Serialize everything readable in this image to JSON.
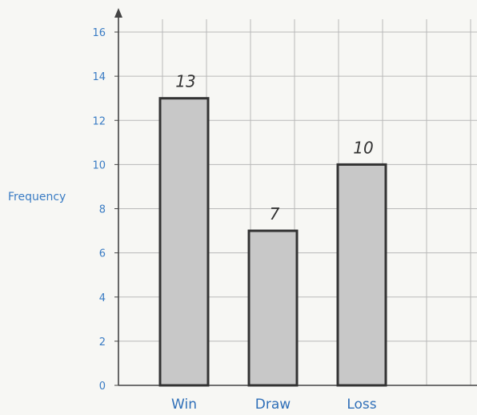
{
  "chart_data": {
    "type": "bar",
    "categories": [
      "Win",
      "Draw",
      "Loss"
    ],
    "values": [
      13,
      7,
      10
    ],
    "data_labels": [
      "13",
      "7",
      "10"
    ],
    "title": "",
    "xlabel": "",
    "ylabel": "Frequency",
    "ylim": [
      0,
      16
    ],
    "y_ticks": [
      0,
      2,
      4,
      6,
      8,
      10,
      12,
      14,
      16
    ],
    "grid": true,
    "legend": "none",
    "bar_color": "#c8c8c8",
    "bar_edge_color": "#333333",
    "label_color": "#3a7cc4"
  }
}
